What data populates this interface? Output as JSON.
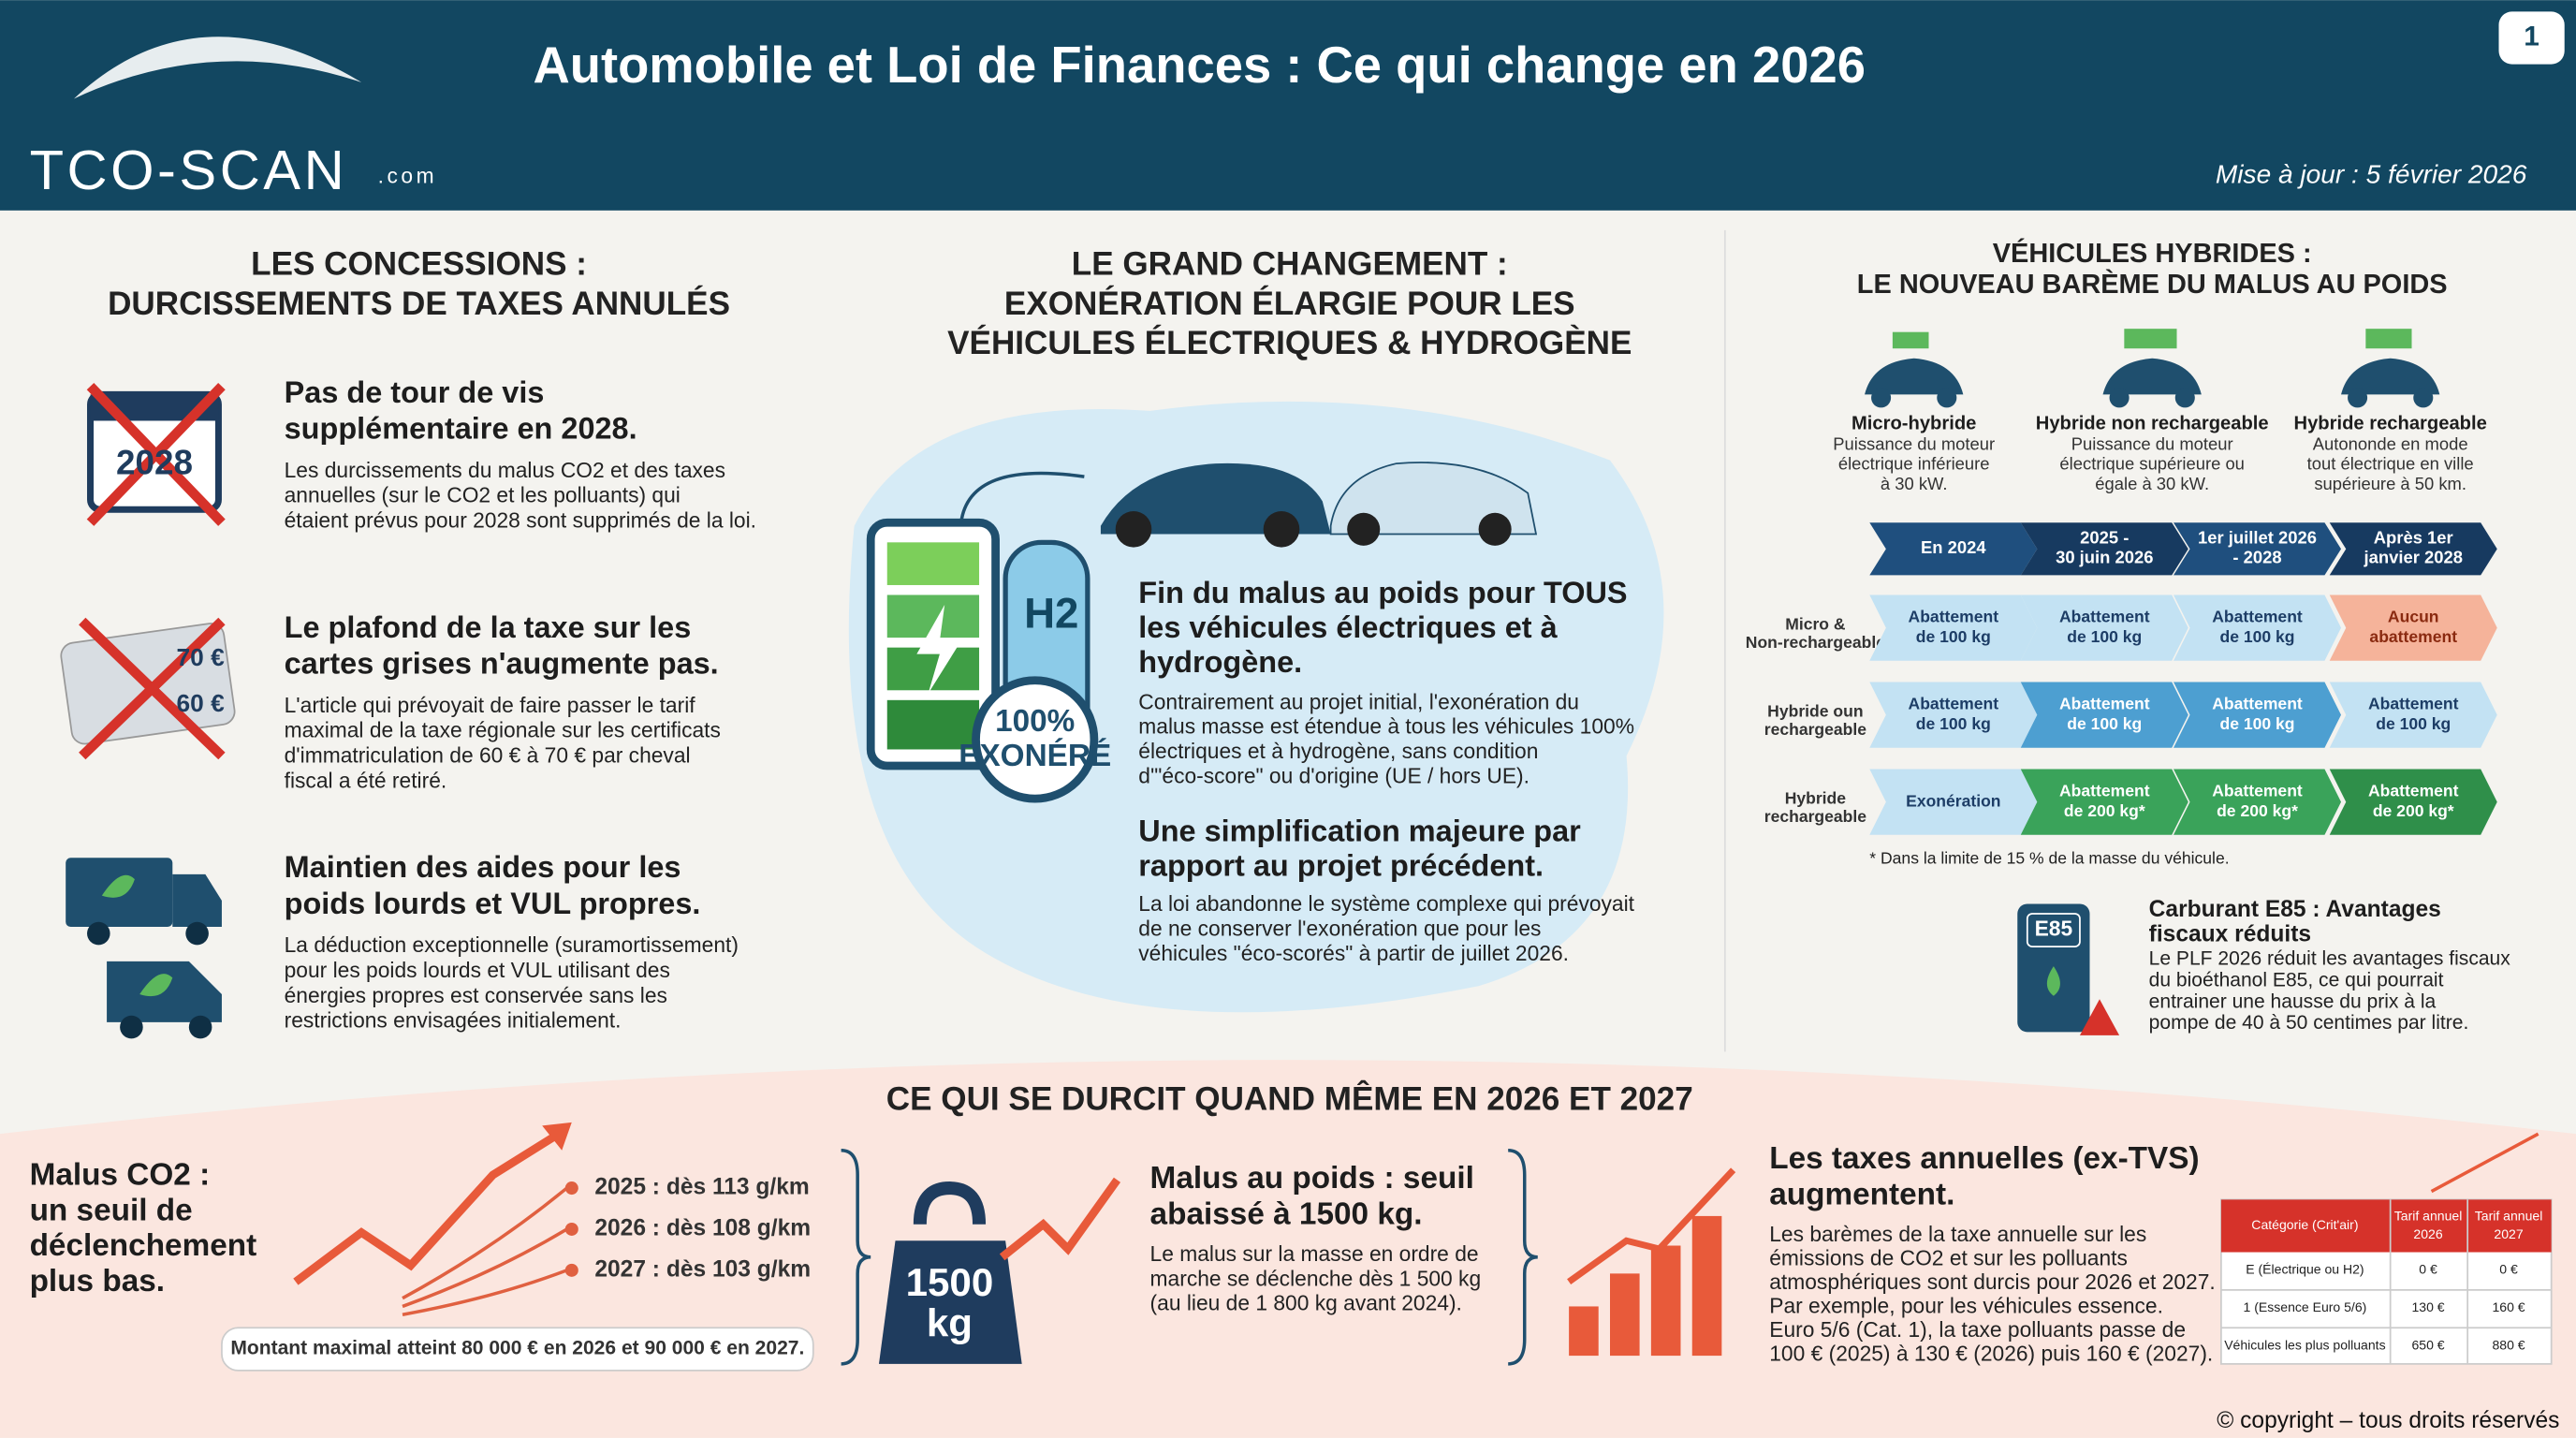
{
  "header": {
    "title": "Automobile et Loi de Finances : Ce qui change en 2026",
    "logo": "TCO-SCAN",
    "logo_suffix": ".com",
    "page": "1",
    "date": "Mise à jour : 5 février 2026"
  },
  "left": {
    "title": [
      "LES CONCESSIONS :",
      "DURCISSEMENTS DE TAXES ANNULÉS"
    ],
    "items": [
      {
        "icon": "2028",
        "heading": [
          "Pas de tour de vis",
          "supplémentaire en 2028."
        ],
        "body": [
          "Les durcissements du malus CO2 et des taxes",
          "annuelles (sur le CO2 et les polluants) qui",
          "étaient prévus pour 2028 sont supprimés de la loi."
        ]
      },
      {
        "icon": [
          "70 €",
          "60 €"
        ],
        "heading": [
          "Le plafond de la taxe sur les",
          "cartes grises n'augmente pas."
        ],
        "body": [
          "L'article qui prévoyait de faire passer le tarif",
          "maximal de la taxe régionale sur les certificats",
          "d'immatriculation de 60 € à 70 € par cheval",
          "fiscal a été retiré."
        ]
      },
      {
        "heading": [
          "Maintien des aides pour les",
          "poids lourds et VUL propres."
        ],
        "body": [
          "La déduction exceptionnelle (suramortissement)",
          "pour les poids lourds et VUL utilisant des",
          "énergies propres est conservée sans les",
          "restrictions envisagées initialement."
        ]
      }
    ]
  },
  "center": {
    "title": [
      "LE GRAND CHANGEMENT :",
      "EXONÉRATION ÉLARGIE POUR LES",
      "VÉHICULES ÉLECTRIQUES & HYDROGÈNE"
    ],
    "tank": "H2",
    "badge": [
      "100%",
      "EXONÉRÉ"
    ],
    "items": [
      {
        "heading": [
          "Fin du malus au poids pour TOUS",
          "les véhicules électriques et à",
          "hydrogène."
        ],
        "body": [
          "Contrairement au projet initial, l'exonération du",
          "malus masse est étendue à tous les véhicules 100%",
          "électriques et à hydrogène, sans condition",
          "d'\"éco-score\" ou d'origine (UE / hors UE)."
        ]
      },
      {
        "heading": [
          "Une simplification majeure par",
          "rapport au projet précédent."
        ],
        "body": [
          "La loi abandonne le système complexe qui prévoyait",
          "de ne conserver l'exonération que pour les",
          "véhicules \"éco-scorés\" à partir de juillet 2026."
        ]
      }
    ]
  },
  "right": {
    "title": [
      "VÉHICULES HYBRIDES :",
      "LE NOUVEAU BARÈME DU MALUS AU POIDS"
    ],
    "vehicles": [
      {
        "name": "Micro-hybride",
        "desc": [
          "Puissance du moteur",
          "électrique inférieure",
          "à 30 kW."
        ]
      },
      {
        "name": "Hybride non rechargeable",
        "desc": [
          "Puissance du moteur",
          "électrique supérieure ou",
          "égale à 30 kW."
        ]
      },
      {
        "name": "Hybride rechargeable",
        "desc": [
          "Autononde en mode",
          "tout électrique en ville",
          "supérieure à 50 km."
        ]
      }
    ],
    "columns": [
      [
        "En 2024"
      ],
      [
        "2025 -",
        "30 juin 2026"
      ],
      [
        "1er juillet 2026",
        "- 2028"
      ],
      [
        "Après 1er",
        "janvier 2028"
      ]
    ],
    "rows": [
      {
        "label": [
          "Micro &",
          "Non-rechargeable"
        ],
        "cells": [
          [
            "Abattement",
            "de 100 kg"
          ],
          [
            "Abattement",
            "de 100 kg"
          ],
          [
            "Abattement",
            "de 100 kg"
          ],
          [
            "Aucun",
            "abattement"
          ]
        ]
      },
      {
        "label": [
          "Hybride oun",
          "rechargeable"
        ],
        "cells": [
          [
            "Abattement",
            "de 100 kg"
          ],
          [
            "Abattement",
            "de 100 kg"
          ],
          [
            "Abattement",
            "de 100 kg"
          ],
          [
            "Abattement",
            "de 100 kg"
          ]
        ]
      },
      {
        "label": [
          "Hybride",
          "rechargeable"
        ],
        "cells": [
          [
            "Exonération"
          ],
          [
            "Abattement",
            "de 200 kg*"
          ],
          [
            "Abattement",
            "de 200 kg*"
          ],
          [
            "Abattement",
            "de 200 kg*"
          ]
        ]
      }
    ],
    "footnote": "* Dans la limite de 15 % de la masse du véhicule.",
    "e85": {
      "icon": "E85",
      "heading": [
        "Carburant E85 : Avantages",
        "fiscaux réduits"
      ],
      "body": [
        "Le PLF 2026 réduit les avantages fiscaux",
        "du bioéthanol E85, ce qui pourrait",
        "entrainer une hausse du prix à la",
        "pompe de 40 à 50 centimes par litre."
      ]
    }
  },
  "bottom": {
    "title": "CE QUI SE DURCIT QUAND MÊME EN 2026 ET 2027",
    "co2": {
      "heading": [
        "Malus CO2 :",
        "un seuil de",
        "déclenchement",
        "plus bas."
      ],
      "thresholds": [
        "2025 : dès 113 g/km",
        "2026 : dès 108 g/km",
        "2027 : dès 103 g/km"
      ],
      "note": "Montant maximal atteint 80 000 € en 2026 et 90 000 € en 2027."
    },
    "weight": {
      "badge": [
        "1500",
        "kg"
      ],
      "heading": [
        "Malus au poids : seuil",
        "abaissé à 1500 kg."
      ],
      "body": [
        "Le malus sur la masse en ordre de",
        "marche se déclenche dès 1 500 kg",
        "(au lieu de 1 800 kg avant 2024)."
      ]
    },
    "annual": {
      "heading": [
        "Les taxes annuelles (ex-TVS)",
        "augmentent."
      ],
      "body": [
        "Les barèmes de la taxe annuelle sur les",
        "émissions de CO2 et sur les polluants",
        "atmosphériques sont durcis pour 2026 et 2027.",
        "Par exemple, pour les véhicules essence.",
        "Euro 5/6 (Cat. 1), la taxe polluants passe de",
        "100 € (2025) à 130 € (2026) puis 160 € (2027)."
      ],
      "table": {
        "header": [
          "Catégorie (Crit'air)",
          [
            "Tarif annuel",
            "2026"
          ],
          [
            "Tarif annuel",
            "2027"
          ]
        ],
        "rows": [
          [
            "E (Électrique ou H2)",
            "0 €",
            "0 €"
          ],
          [
            "1 (Essence Euro 5/6)",
            "130 €",
            "160 €"
          ],
          [
            "Véhicules les plus polluants",
            "650 €",
            "880 €"
          ]
        ]
      }
    }
  },
  "copyright": "© copyright – tous droits réservés"
}
